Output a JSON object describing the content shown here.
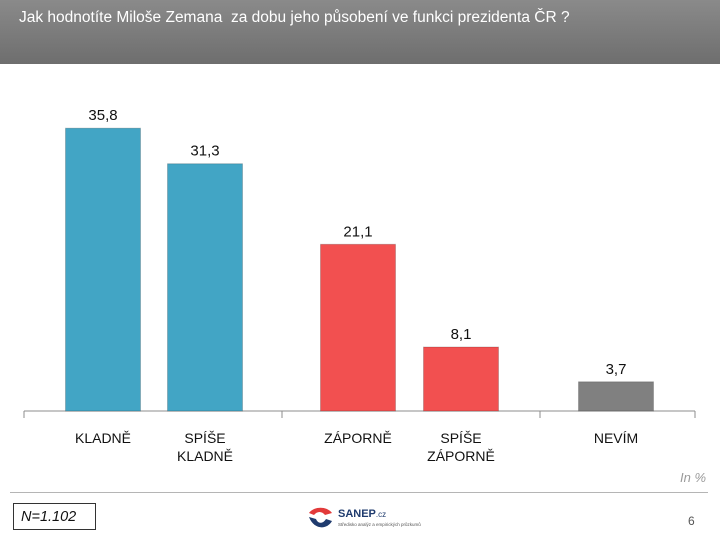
{
  "header": {
    "title": "Jak hodnotíte Miloše Zemana  za dobu jeho působení ve funkci prezidenta ČR ?"
  },
  "chart_data": {
    "type": "bar",
    "title": "Jak hodnotíte Miloše Zemana  za dobu jeho působení ve funkci prezidenta ČR ?",
    "categories": [
      "KLADNĚ",
      "SPÍŠE KLADNĚ",
      "ZÁPORNĚ",
      "SPÍŠE ZÁPORNĚ",
      "NEVÍM"
    ],
    "category_lines": [
      [
        "KLADNĚ"
      ],
      [
        "SPÍŠE",
        "KLADNĚ"
      ],
      [
        "ZÁPORNĚ"
      ],
      [
        "SPÍŠE",
        "ZÁPORNĚ"
      ],
      [
        "NEVÍM"
      ]
    ],
    "values": [
      35.8,
      31.3,
      21.1,
      8.1,
      3.7
    ],
    "value_labels": [
      "35,8",
      "31,3",
      "21,1",
      "8,1",
      "3,7"
    ],
    "colors": [
      "#42a5c5",
      "#42a5c5",
      "#f25050",
      "#f25050",
      "#808080"
    ],
    "groups": [
      [
        0,
        1
      ],
      [
        2,
        3
      ],
      [
        4
      ]
    ],
    "ylim": [
      0,
      40
    ],
    "grid": false,
    "unit": "In %"
  },
  "footer": {
    "sample": "N=1.102",
    "logo_name": "SANEP",
    "logo_suffix": ".cz",
    "logo_tagline": "Středisko analýz a empirických průzkumů",
    "page_number": "6"
  }
}
